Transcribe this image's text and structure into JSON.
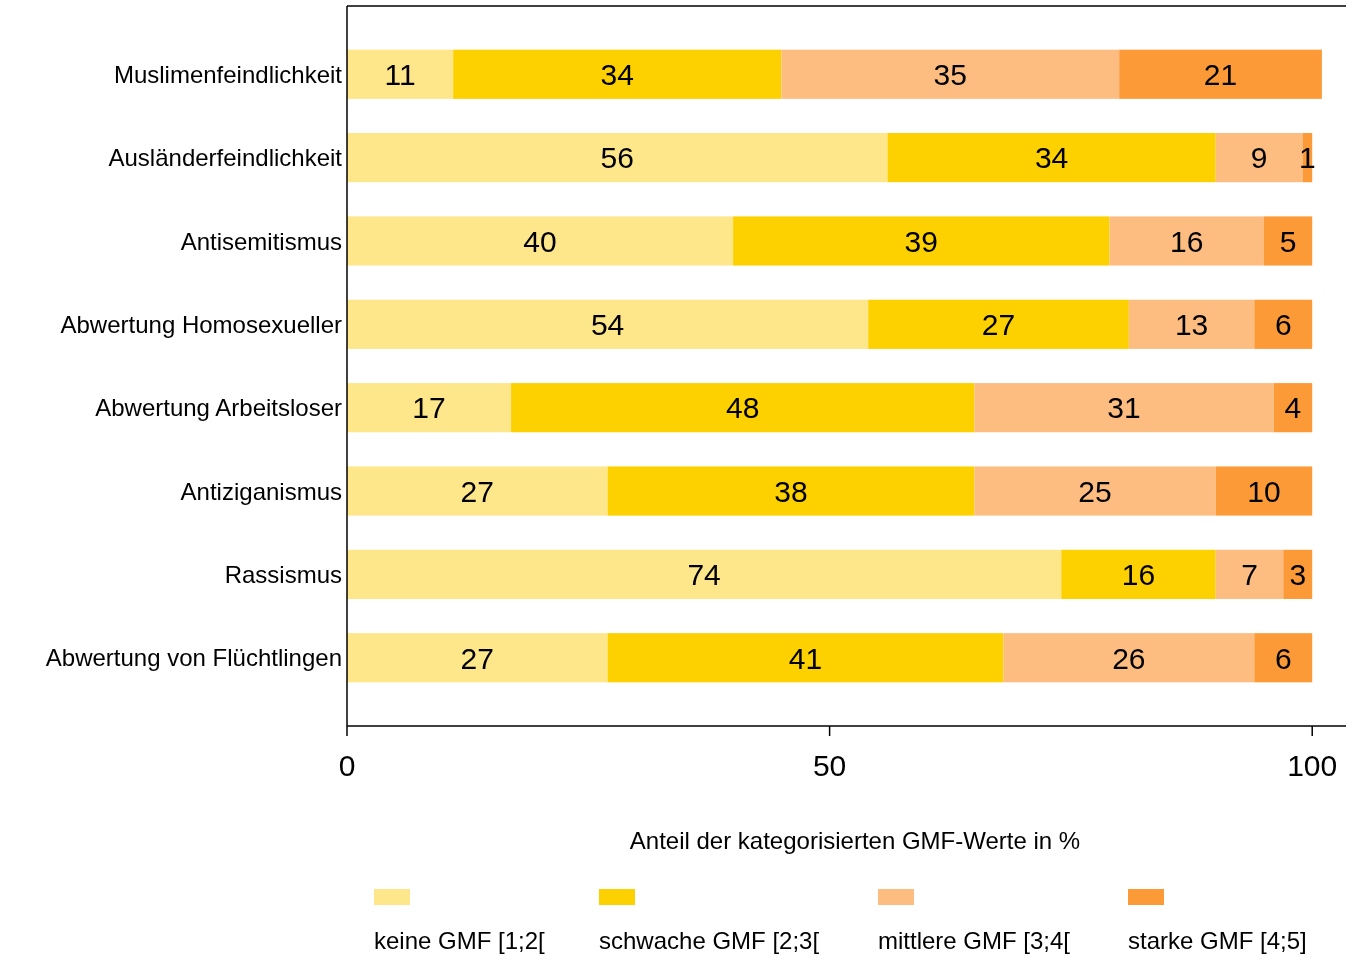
{
  "chart_data": {
    "type": "bar",
    "orientation": "horizontal",
    "stacked": true,
    "xlabel": "Anteil der kategorisierten GMF-Werte in %",
    "categories": [
      "Muslimenfeindlichkeit",
      "Ausländerfeindlichkeit",
      "Antisemitismus",
      "Abwertung Homosexueller",
      "Abwertung Arbeitsloser",
      "Antiziganismus",
      "Rassismus",
      "Abwertung von Flüchtlingen"
    ],
    "series": [
      {
        "name": "keine GMF [1;2[",
        "color": "#fee68a",
        "values": [
          11,
          56,
          40,
          54,
          17,
          27,
          74,
          27
        ]
      },
      {
        "name": "schwache GMF [2;3[",
        "color": "#fdd000",
        "values": [
          34,
          34,
          39,
          27,
          48,
          38,
          16,
          41
        ]
      },
      {
        "name": "mittlere GMF [3;4[",
        "color": "#fdbd80",
        "values": [
          35,
          9,
          16,
          13,
          31,
          25,
          7,
          26
        ]
      },
      {
        "name": "starke GMF [4;5]",
        "color": "#fd9a38",
        "values": [
          21,
          1,
          5,
          6,
          4,
          10,
          3,
          6
        ]
      }
    ],
    "xlim": [
      0,
      103.5
    ],
    "xticks": [
      0,
      50,
      100
    ],
    "data_labels": true,
    "legend": "bottom",
    "grid": false
  }
}
